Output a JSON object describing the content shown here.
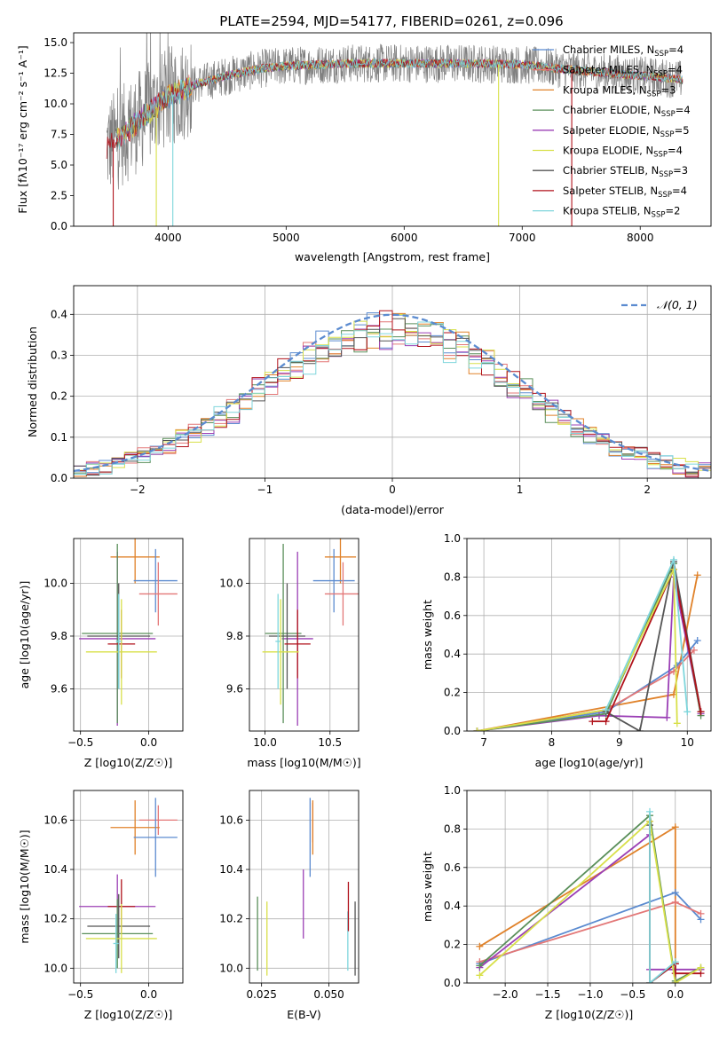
{
  "figure": {
    "title": "PLATE=2594, MJD=54177, FIBERID=0261, z=0.096",
    "series_colors": {
      "Chabrier MILES": "#5b8bd0",
      "Salpeter MILES": "#e37777",
      "Kroupa MILES": "#e0822a",
      "Chabrier ELODIE": "#5a8f5a",
      "Salpeter ELODIE": "#9b3fb5",
      "Kroupa ELODIE": "#d8e04a",
      "Chabrier STELIB": "#555555",
      "Salpeter STELIB": "#b0121b",
      "Kroupa STELIB": "#7fd6dc"
    }
  },
  "chart_data": [
    {
      "id": "spectrum",
      "type": "line",
      "xlabel": "wavelength [Angstrom, rest frame]",
      "ylabel": "Flux [fλ10⁻¹⁷ erg cm⁻² s⁻¹ A⁻¹]",
      "xlim": [
        3200,
        8600
      ],
      "ylim": [
        0,
        15.8
      ],
      "xticks": [
        "4000",
        "5000",
        "6000",
        "7000",
        "8000"
      ],
      "yticks": [
        "0.0",
        "2.5",
        "5.0",
        "7.5",
        "10.0",
        "12.5",
        "15.0"
      ],
      "grid": false,
      "legend_position": "right",
      "legend": [
        {
          "base": "Chabrier MILES, N",
          "sub": "SSP",
          "tail": "=4",
          "color": "#5b8bd0"
        },
        {
          "base": "Salpeter MILES, N",
          "sub": "SSP",
          "tail": "=4",
          "color": "#e37777"
        },
        {
          "base": "Kroupa MILES, N",
          "sub": "SSP",
          "tail": "=3",
          "color": "#e0822a"
        },
        {
          "base": "Chabrier ELODIE, N",
          "sub": "SSP",
          "tail": "=4",
          "color": "#5a8f5a"
        },
        {
          "base": "Salpeter ELODIE, N",
          "sub": "SSP",
          "tail": "=5",
          "color": "#9b3fb5"
        },
        {
          "base": "Kroupa ELODIE, N",
          "sub": "SSP",
          "tail": "=4",
          "color": "#d8e04a"
        },
        {
          "base": "Chabrier STELIB, N",
          "sub": "SSP",
          "tail": "=3",
          "color": "#555555"
        },
        {
          "base": "Salpeter STELIB, N",
          "sub": "SSP",
          "tail": "=4",
          "color": "#b0121b"
        },
        {
          "base": "Kroupa STELIB, N",
          "sub": "SSP",
          "tail": "=2",
          "color": "#7fd6dc"
        }
      ],
      "data_trend": {
        "x": [
          3480,
          3600,
          3800,
          4000,
          4200,
          4500,
          4800,
          5000,
          5500,
          6000,
          6500,
          7000,
          7500,
          8000,
          8350
        ],
        "y": [
          6.5,
          7.3,
          9.0,
          10.5,
          11.5,
          12.3,
          12.9,
          13.1,
          13.3,
          13.3,
          13.3,
          13.2,
          12.7,
          12.3,
          12.0
        ]
      }
    },
    {
      "id": "residuals",
      "type": "line",
      "xlabel": "(data-model)/error",
      "ylabel": "Normed distribution",
      "xlim": [
        -2.5,
        2.5
      ],
      "ylim": [
        0,
        0.47
      ],
      "xticks": [
        "−2",
        "−1",
        "0",
        "1",
        "2"
      ],
      "yticks": [
        "0.0",
        "0.1",
        "0.2",
        "0.3",
        "0.4"
      ],
      "grid": true,
      "legend_position": "upper right",
      "legend": [
        {
          "label": "𝒩(0, 1)",
          "color": "#5b8bd0"
        }
      ],
      "reference_curve": "gaussian mean 0 sigma 1"
    },
    {
      "id": "age-vs-Z",
      "type": "scatter",
      "xlabel": "Z [log10(Z/Z☉)]",
      "ylabel": "age [log10(age/yr)]",
      "xlim": [
        -0.55,
        0.25
      ],
      "ylim": [
        9.44,
        10.17
      ],
      "xticks": [
        "−0.5",
        "0.0"
      ],
      "yticks": [
        "9.6",
        "9.8",
        "10.0"
      ],
      "grid": true,
      "points": [
        {
          "color": "#e0822a",
          "x": -0.1,
          "xerr": 0.18,
          "y": 10.1,
          "yerr": 0.1
        },
        {
          "color": "#5b8bd0",
          "x": 0.05,
          "xerr": 0.16,
          "y": 10.01,
          "yerr": 0.12
        },
        {
          "color": "#e37777",
          "x": 0.07,
          "xerr": 0.14,
          "y": 9.96,
          "yerr": 0.12
        },
        {
          "color": "#9b3fb5",
          "x": -0.23,
          "xerr": 0.28,
          "y": 9.79,
          "yerr": 0.33
        },
        {
          "color": "#5a8f5a",
          "x": -0.23,
          "xerr": 0.26,
          "y": 9.81,
          "yerr": 0.34
        },
        {
          "color": "#555555",
          "x": -0.22,
          "xerr": 0.23,
          "y": 9.8,
          "yerr": 0.2
        },
        {
          "color": "#b0121b",
          "x": -0.2,
          "xerr": 0.1,
          "y": 9.77,
          "yerr": 0.13
        },
        {
          "color": "#d8e04a",
          "x": -0.2,
          "xerr": 0.26,
          "y": 9.74,
          "yerr": 0.2
        },
        {
          "color": "#7fd6dc",
          "x": -0.22,
          "xerr": 0.02,
          "y": 9.78,
          "yerr": 0.18
        }
      ]
    },
    {
      "id": "age-vs-mass",
      "type": "scatter",
      "xlabel": "mass [log10(M/M☉)]",
      "ylim": [
        9.44,
        10.17
      ],
      "xlim": [
        9.88,
        10.72
      ],
      "xticks": [
        "10.0",
        "10.5"
      ],
      "yticks": [
        "9.6",
        "9.8",
        "10.0"
      ],
      "grid": true,
      "points": [
        {
          "color": "#e0822a",
          "x": 10.58,
          "xerr": 0.12,
          "y": 10.1,
          "yerr": 0.1
        },
        {
          "color": "#5b8bd0",
          "x": 10.53,
          "xerr": 0.16,
          "y": 10.01,
          "yerr": 0.12
        },
        {
          "color": "#e37777",
          "x": 10.6,
          "xerr": 0.14,
          "y": 9.96,
          "yerr": 0.12
        },
        {
          "color": "#9b3fb5",
          "x": 10.25,
          "xerr": 0.12,
          "y": 9.79,
          "yerr": 0.33
        },
        {
          "color": "#5a8f5a",
          "x": 10.14,
          "xerr": 0.14,
          "y": 9.81,
          "yerr": 0.34
        },
        {
          "color": "#555555",
          "x": 10.17,
          "xerr": 0.14,
          "y": 9.8,
          "yerr": 0.2
        },
        {
          "color": "#b0121b",
          "x": 10.25,
          "xerr": 0.1,
          "y": 9.77,
          "yerr": 0.13
        },
        {
          "color": "#d8e04a",
          "x": 10.12,
          "xerr": 0.14,
          "y": 9.74,
          "yerr": 0.2
        },
        {
          "color": "#7fd6dc",
          "x": 10.1,
          "xerr": 0.02,
          "y": 9.78,
          "yerr": 0.18
        }
      ]
    },
    {
      "id": "weight-vs-age",
      "type": "line",
      "xlabel": "age [log10(age/yr)]",
      "ylabel": "mass weight",
      "xlim": [
        6.75,
        10.35
      ],
      "ylim": [
        0,
        1.0
      ],
      "xticks": [
        "7",
        "8",
        "9",
        "10"
      ],
      "yticks": [
        "0.0",
        "0.2",
        "0.4",
        "0.6",
        "0.8",
        "1.0"
      ],
      "grid": true,
      "series": [
        {
          "color": "#e0822a",
          "x": [
            6.9,
            9.8,
            10.15
          ],
          "y": [
            0.0,
            0.19,
            0.81
          ]
        },
        {
          "color": "#5b8bd0",
          "x": [
            6.9,
            8.8,
            9.85,
            10.15
          ],
          "y": [
            0.0,
            0.1,
            0.34,
            0.47
          ]
        },
        {
          "color": "#e37777",
          "x": [
            6.9,
            8.8,
            9.8,
            10.1
          ],
          "y": [
            0.0,
            0.11,
            0.31,
            0.42
          ]
        },
        {
          "color": "#9b3fb5",
          "x": [
            6.9,
            8.7,
            9.7,
            9.8,
            10.2
          ],
          "y": [
            0.0,
            0.08,
            0.07,
            0.8,
            0.09
          ]
        },
        {
          "color": "#5a8f5a",
          "x": [
            6.9,
            8.8,
            9.8,
            10.2
          ],
          "y": [
            0.0,
            0.09,
            0.87,
            0.08
          ]
        },
        {
          "color": "#555555",
          "x": [
            8.8,
            9.3,
            9.8,
            10.2
          ],
          "y": [
            0.1,
            0.0,
            0.88,
            0.1
          ]
        },
        {
          "color": "#b0121b",
          "x": [
            8.6,
            8.8,
            9.8,
            10.2
          ],
          "y": [
            0.05,
            0.05,
            0.84,
            0.1
          ]
        },
        {
          "color": "#d8e04a",
          "x": [
            6.9,
            8.8,
            9.8,
            9.85
          ],
          "y": [
            0.0,
            0.11,
            0.84,
            0.04
          ]
        },
        {
          "color": "#7fd6dc",
          "x": [
            8.8,
            9.8,
            10.0
          ],
          "y": [
            0.11,
            0.89,
            0.1
          ]
        }
      ]
    },
    {
      "id": "mass-vs-Z",
      "type": "scatter",
      "xlabel": "Z [log10(Z/Z☉)]",
      "ylabel": "mass [log10(M/M☉)]",
      "xlim": [
        -0.55,
        0.25
      ],
      "ylim": [
        9.94,
        10.72
      ],
      "xticks": [
        "−0.5",
        "0.0"
      ],
      "yticks": [
        "10.0",
        "10.2",
        "10.4",
        "10.6"
      ],
      "grid": true,
      "points": [
        {
          "color": "#e37777",
          "x": 0.07,
          "xerr": 0.14,
          "y": 10.6,
          "yerr": 0.06
        },
        {
          "color": "#e0822a",
          "x": -0.1,
          "xerr": 0.18,
          "y": 10.57,
          "yerr": 0.11
        },
        {
          "color": "#5b8bd0",
          "x": 0.05,
          "xerr": 0.16,
          "y": 10.53,
          "yerr": 0.16
        },
        {
          "color": "#9b3fb5",
          "x": -0.23,
          "xerr": 0.28,
          "y": 10.25,
          "yerr": 0.13
        },
        {
          "color": "#b0121b",
          "x": -0.2,
          "xerr": 0.1,
          "y": 10.25,
          "yerr": 0.11
        },
        {
          "color": "#555555",
          "x": -0.22,
          "xerr": 0.23,
          "y": 10.17,
          "yerr": 0.13
        },
        {
          "color": "#5a8f5a",
          "x": -0.23,
          "xerr": 0.26,
          "y": 10.14,
          "yerr": 0.14
        },
        {
          "color": "#d8e04a",
          "x": -0.2,
          "xerr": 0.26,
          "y": 10.12,
          "yerr": 0.14
        },
        {
          "color": "#7fd6dc",
          "x": -0.24,
          "xerr": 0.02,
          "y": 10.1,
          "yerr": 0.12
        }
      ]
    },
    {
      "id": "mass-vs-EBV",
      "type": "scatter",
      "xlabel": "E(B-V)",
      "xlim": [
        0.0205,
        0.061
      ],
      "ylim": [
        9.94,
        10.72
      ],
      "xticks": [
        "0.025",
        "0.050"
      ],
      "yticks": [
        "10.0",
        "10.2",
        "10.4",
        "10.6"
      ],
      "grid": true,
      "points": [
        {
          "color": "#5a8f5a",
          "x": 0.0235,
          "y": 10.14,
          "yerr": 0.15
        },
        {
          "color": "#d8e04a",
          "x": 0.027,
          "y": 10.12,
          "yerr": 0.15
        },
        {
          "color": "#9b3fb5",
          "x": 0.0405,
          "y": 10.26,
          "yerr": 0.14
        },
        {
          "color": "#5b8bd0",
          "x": 0.043,
          "y": 10.53,
          "yerr": 0.16
        },
        {
          "color": "#e37777",
          "x": 0.044,
          "y": 10.59,
          "yerr": 0.08
        },
        {
          "color": "#e0822a",
          "x": 0.044,
          "y": 10.57,
          "yerr": 0.11
        },
        {
          "color": "#7fd6dc",
          "x": 0.057,
          "y": 10.11,
          "yerr": 0.12
        },
        {
          "color": "#b0121b",
          "x": 0.0572,
          "y": 10.25,
          "yerr": 0.1
        },
        {
          "color": "#555555",
          "x": 0.0597,
          "y": 10.12,
          "yerr": 0.15
        }
      ]
    },
    {
      "id": "weight-vs-Z",
      "type": "line",
      "xlabel": "Z [log10(Z/Z☉)]",
      "ylabel": "mass weight",
      "xlim": [
        -2.45,
        0.42
      ],
      "ylim": [
        0,
        1.0
      ],
      "xticks": [
        "−2.0",
        "−1.5",
        "−1.0",
        "−0.5",
        "0.0"
      ],
      "yticks": [
        "0.0",
        "0.2",
        "0.4",
        "0.6",
        "0.8",
        "1.0"
      ],
      "grid": true,
      "series": [
        {
          "color": "#e0822a",
          "x": [
            -2.3,
            0.0,
            0.0
          ],
          "y": [
            0.19,
            0.81,
            0.0
          ]
        },
        {
          "color": "#5b8bd0",
          "x": [
            -2.3,
            0.0,
            0.3
          ],
          "y": [
            0.1,
            0.47,
            0.33
          ]
        },
        {
          "color": "#e37777",
          "x": [
            -2.3,
            0.0,
            0.3
          ],
          "y": [
            0.11,
            0.42,
            0.36
          ]
        },
        {
          "color": "#9b3fb5",
          "x": [
            -2.3,
            -0.3,
            -0.3,
            0.3
          ],
          "y": [
            0.08,
            0.77,
            0.07,
            0.07
          ]
        },
        {
          "color": "#5a8f5a",
          "x": [
            -2.3,
            -0.3,
            0.0,
            0.3
          ],
          "y": [
            0.09,
            0.87,
            0.01,
            0.08
          ]
        },
        {
          "color": "#555555",
          "x": [
            -0.3,
            -0.3,
            0.0,
            0.0
          ],
          "y": [
            0.82,
            0.0,
            0.1,
            0.0
          ]
        },
        {
          "color": "#b0121b",
          "x": [
            -0.3,
            -0.3,
            0.0,
            0.0,
            0.3
          ],
          "y": [
            0.84,
            0.0,
            0.1,
            0.05,
            0.05
          ]
        },
        {
          "color": "#d8e04a",
          "x": [
            -2.3,
            -0.3,
            0.0,
            0.3
          ],
          "y": [
            0.04,
            0.84,
            0.0,
            0.08
          ]
        },
        {
          "color": "#7fd6dc",
          "x": [
            -0.3,
            -0.3,
            0.0
          ],
          "y": [
            0.89,
            0.0,
            0.11
          ]
        }
      ]
    }
  ]
}
